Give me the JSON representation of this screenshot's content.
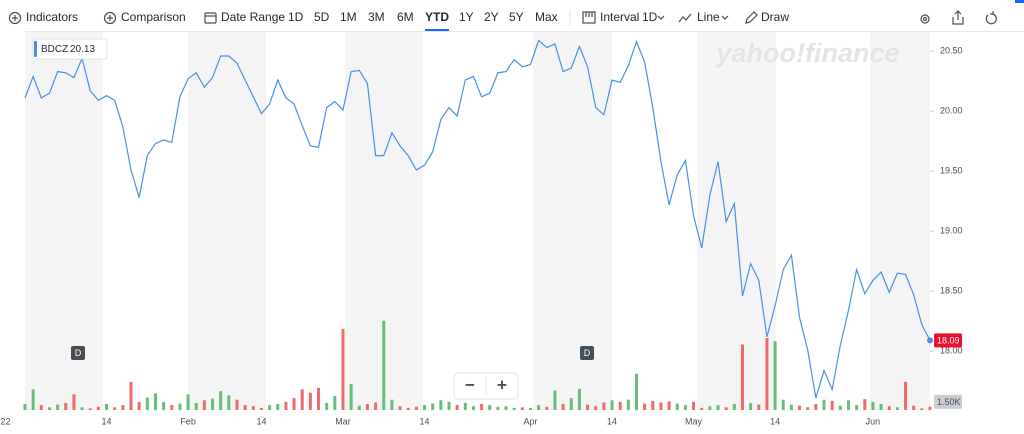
{
  "toolbar": {
    "indicators": "Indicators",
    "comparison": "Comparison",
    "date_range": "Date Range",
    "ranges": [
      "1D",
      "5D",
      "1M",
      "3M",
      "6M",
      "YTD",
      "1Y",
      "2Y",
      "5Y",
      "Max"
    ],
    "active_range": "YTD",
    "interval": "Interval",
    "interval_value": "1D",
    "chart_type": "Line",
    "draw": "Draw"
  },
  "watermark": "yahoo!finance",
  "events": [
    "D",
    "D"
  ],
  "zoom": [
    "−",
    "+"
  ],
  "chart_data": {
    "type": "line",
    "series": [
      {
        "name": "BDCZ",
        "color": "#4a8fe7",
        "values": [
          null,
          null,
          null,
          20.11,
          20.29,
          20.11,
          20.15,
          20.33,
          20.32,
          20.28,
          20.44,
          20.17,
          20.09,
          20.13,
          20.09,
          19.87,
          19.51,
          19.28,
          19.63,
          19.73,
          19.76,
          19.74,
          20.12,
          20.27,
          20.32,
          20.2,
          20.28,
          20.46,
          20.46,
          20.4,
          20.26,
          20.12,
          19.98,
          20.06,
          20.26,
          20.11,
          20.06,
          19.88,
          19.71,
          19.7,
          20.03,
          20.08,
          20.01,
          20.33,
          20.34,
          20.23,
          19.63,
          19.63,
          19.82,
          19.71,
          19.63,
          19.51,
          19.55,
          19.66,
          19.93,
          20.03,
          19.96,
          20.26,
          20.29,
          20.12,
          20.15,
          20.32,
          20.33,
          20.43,
          20.37,
          20.39,
          20.59,
          20.53,
          20.56,
          20.33,
          20.36,
          20.54,
          20.37,
          20.03,
          19.97,
          20.26,
          20.24,
          20.38,
          20.58,
          20.41,
          20.03,
          19.58,
          19.22,
          19.47,
          19.59,
          19.13,
          18.86,
          19.3,
          19.58,
          19.08,
          19.23,
          18.46,
          18.73,
          18.59,
          18.12,
          18.38,
          18.68,
          18.8,
          18.28,
          18.01,
          17.61,
          17.84,
          17.68,
          18.05,
          18.34,
          18.68,
          18.48,
          18.59,
          18.66,
          18.49,
          18.65,
          18.64,
          18.47,
          18.22,
          18.09
        ]
      }
    ],
    "legend_value": "20.13",
    "last_label": "18.09",
    "categories": [
      "22",
      null,
      null,
      null,
      null,
      null,
      null,
      null,
      null,
      null,
      null,
      null,
      null,
      "14",
      null,
      null,
      null,
      null,
      null,
      null,
      null,
      null,
      null,
      "Feb",
      null,
      null,
      null,
      null,
      null,
      null,
      null,
      null,
      "14",
      null,
      null,
      null,
      null,
      null,
      null,
      null,
      null,
      null,
      "Mar",
      null,
      null,
      null,
      null,
      null,
      null,
      null,
      null,
      null,
      "14",
      null,
      null,
      null,
      null,
      null,
      null,
      null,
      null,
      null,
      null,
      null,
      null,
      "Apr",
      null,
      null,
      null,
      null,
      null,
      null,
      null,
      null,
      null,
      "14",
      null,
      null,
      null,
      null,
      null,
      null,
      null,
      null,
      null,
      "May",
      null,
      null,
      null,
      null,
      null,
      null,
      null,
      null,
      null,
      "14",
      null,
      null,
      null,
      null,
      null,
      null,
      null,
      null,
      null,
      null,
      null,
      "Jun",
      null,
      null,
      null,
      null,
      null,
      null,
      null
    ],
    "ylim": [
      17.51,
      20.66
    ],
    "yticks": [
      {
        "value": 18,
        "label": "18.00"
      },
      {
        "value": 18.5,
        "label": "18.50"
      },
      {
        "value": 19,
        "label": "19.00"
      },
      {
        "value": 19.5,
        "label": "19.50"
      },
      {
        "value": 20,
        "label": "20.00"
      },
      {
        "value": 20.5,
        "label": "20.50"
      }
    ],
    "volume": {
      "up_color": "#67bd7a",
      "down_color": "#ee6b6b",
      "values": [
        null,
        null,
        null,
        1100,
        3800,
        900,
        500,
        1000,
        1300,
        2900,
        500,
        300,
        600,
        1100,
        500,
        900,
        5200,
        1500,
        2300,
        3100,
        1500,
        900,
        1200,
        2900,
        1300,
        1800,
        2100,
        3500,
        2700,
        1900,
        900,
        700,
        400,
        900,
        1100,
        1500,
        2200,
        3800,
        3200,
        4100,
        1300,
        2600,
        15000,
        4800,
        800,
        1100,
        1400,
        16500,
        1900,
        700,
        400,
        600,
        900,
        1200,
        1800,
        1500,
        900,
        1300,
        700,
        1100,
        900,
        600,
        700,
        400,
        500,
        400,
        900,
        600,
        3600,
        1100,
        2200,
        3900,
        1000,
        700,
        1400,
        1800,
        1500,
        1900,
        6700,
        1200,
        1700,
        1400,
        1600,
        1200,
        900,
        1500,
        400,
        700,
        900,
        500,
        1100,
        12100,
        1300,
        1000,
        13300,
        12700,
        1900,
        1000,
        800,
        500,
        1100,
        1900,
        1700,
        800,
        1800,
        900,
        2000,
        1500,
        1100,
        700,
        500,
        5200,
        800,
        300,
        600
      ],
      "vlim": [
        0,
        17000
      ],
      "vticks": [
        {
          "value": 1500,
          "label": "1.50K"
        }
      ]
    }
  }
}
